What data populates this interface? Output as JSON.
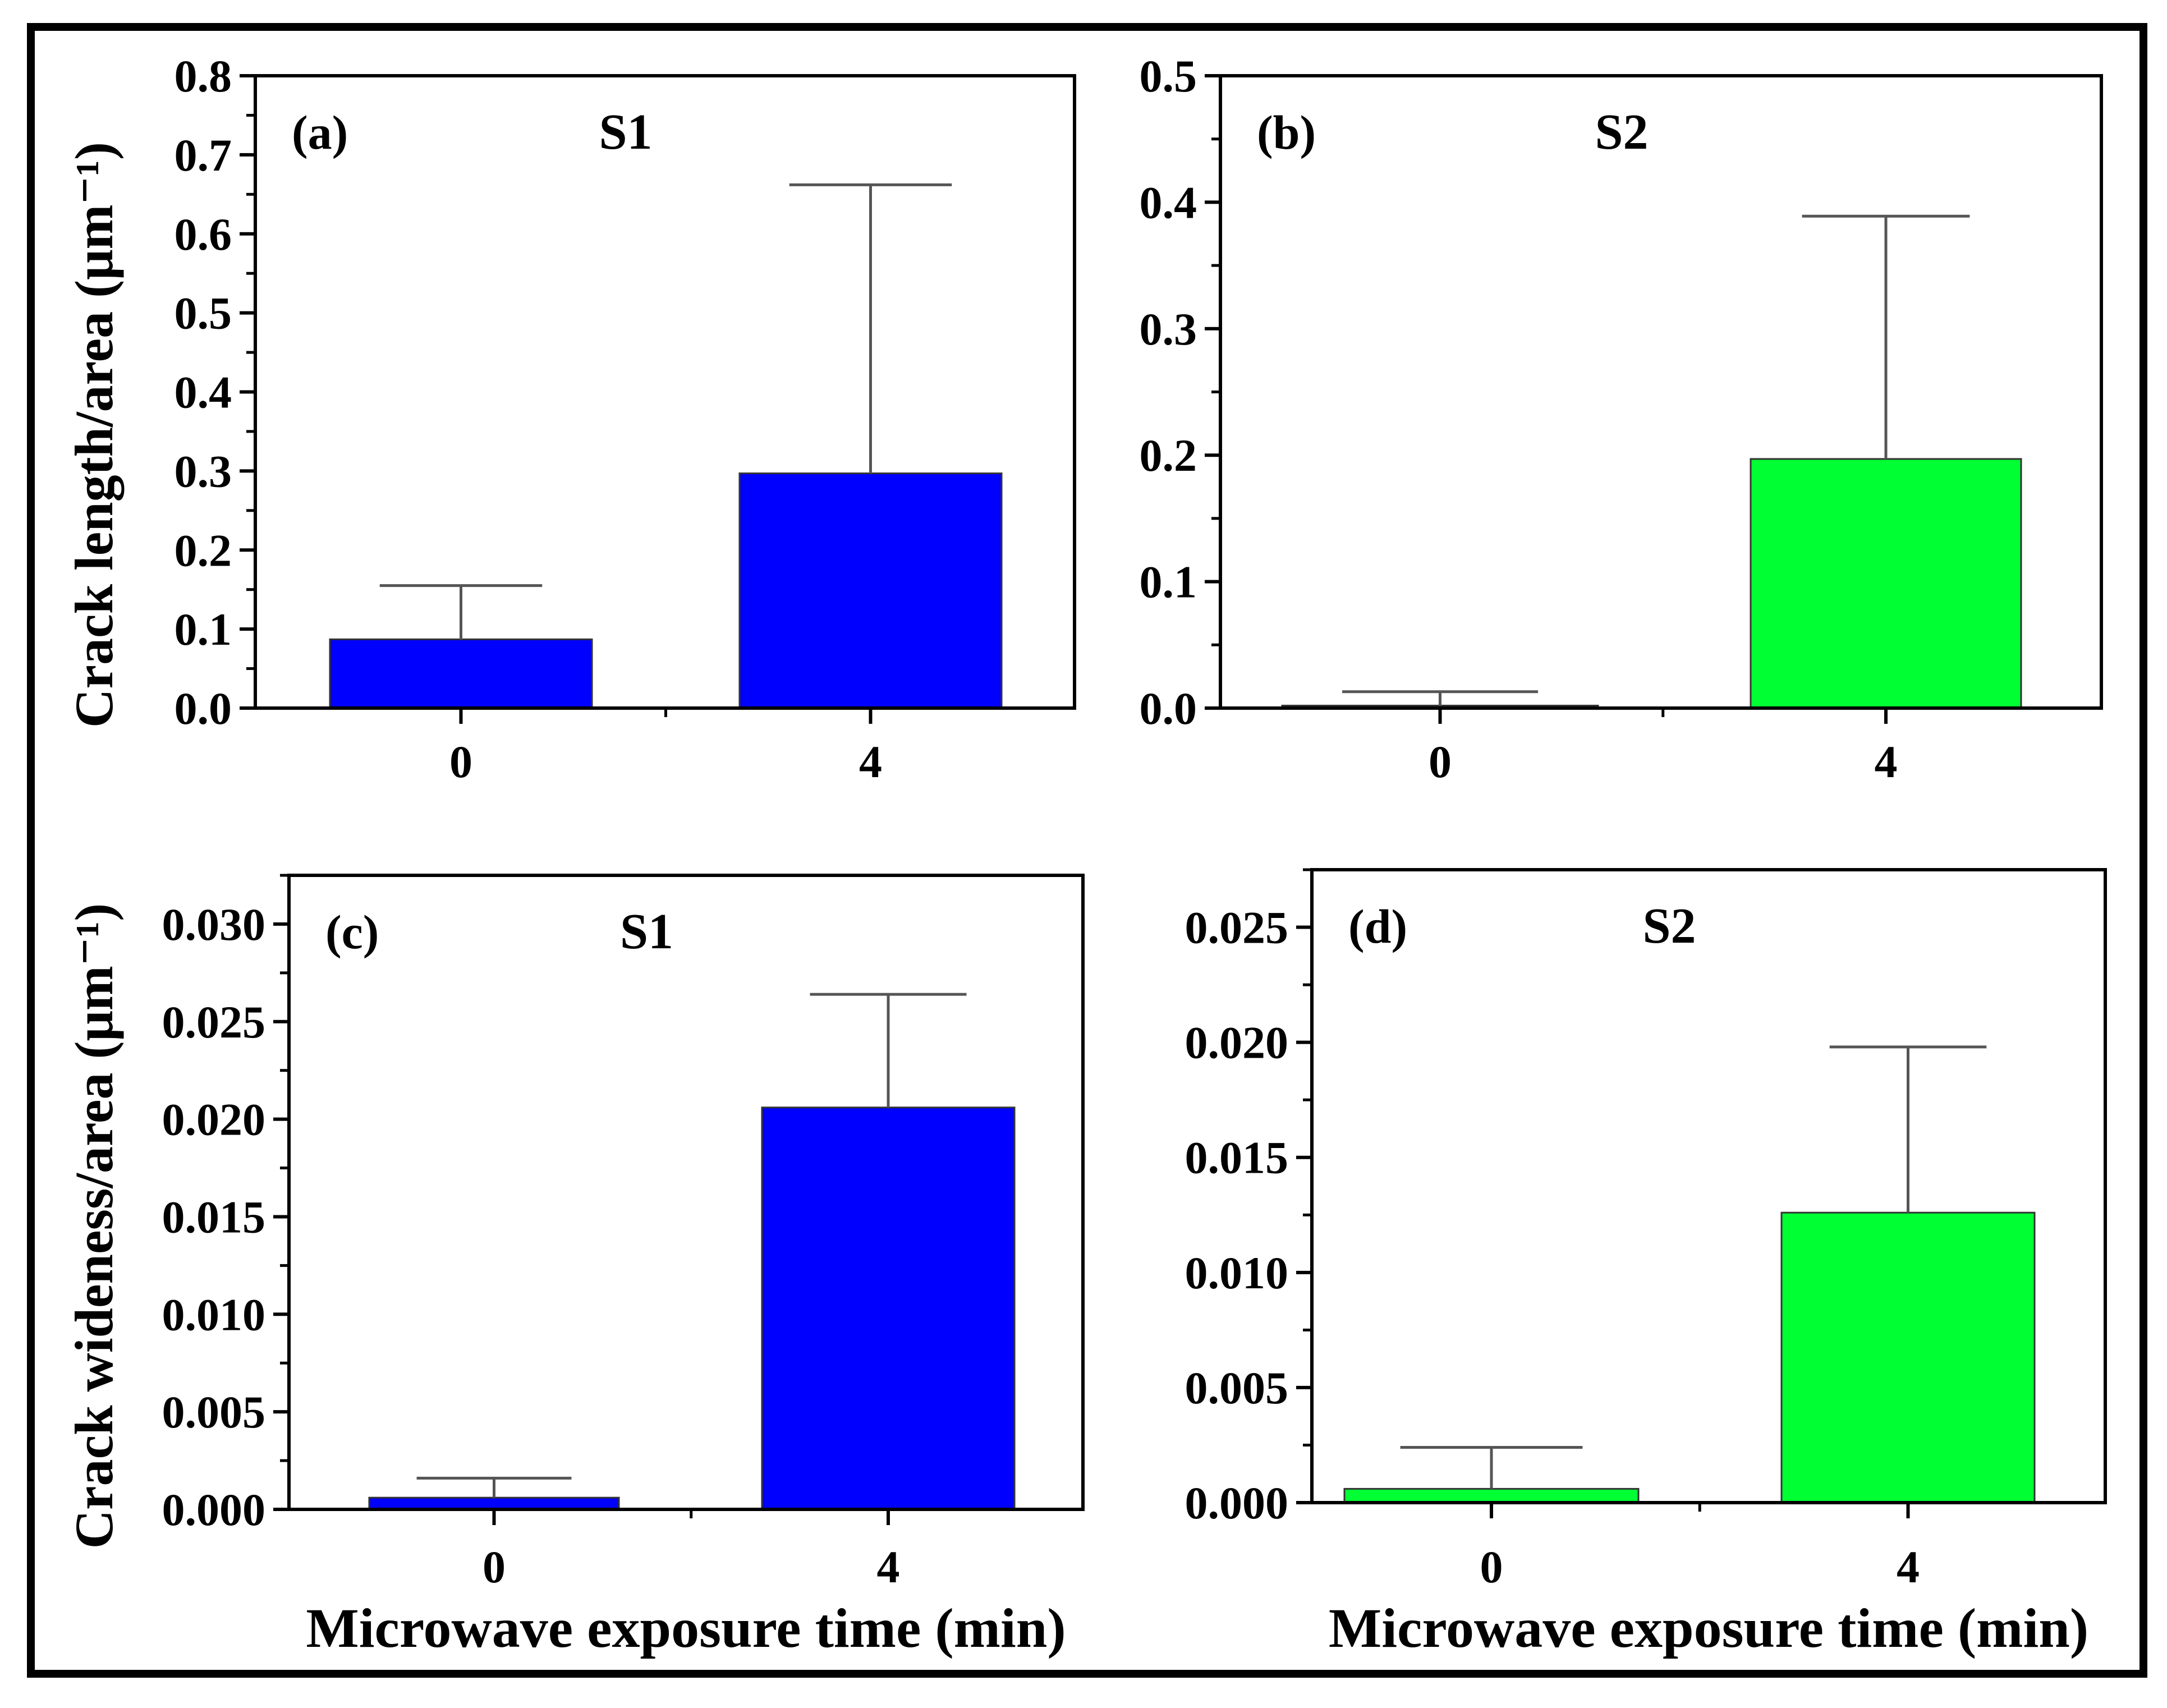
{
  "figure": {
    "ylabel_top": "Crack length/area (μm⁻¹)",
    "ylabel_bottom": "Crack wideness/area (μm⁻¹)",
    "xlabel": "Microwave exposure  time (min)",
    "colors": {
      "s1": "#0000ff",
      "s2": "#00ff33",
      "errorbar": "#555555",
      "axis": "#000000"
    }
  },
  "chart_data": [
    {
      "id": "a",
      "type": "bar",
      "panel_label": "(a)",
      "title": "S1",
      "categories": [
        "0",
        "4"
      ],
      "values": [
        0.087,
        0.297
      ],
      "errors": [
        0.068,
        0.365
      ],
      "ylim": [
        0,
        0.8
      ],
      "yticks": [
        "0.0",
        "0.1",
        "0.2",
        "0.3",
        "0.4",
        "0.5",
        "0.6",
        "0.7",
        "0.8"
      ],
      "ylabel": "Crack length/area (μm⁻¹)",
      "xlabel": "",
      "color": "#0000ff"
    },
    {
      "id": "b",
      "type": "bar",
      "panel_label": "(b)",
      "title": "S2",
      "categories": [
        "0",
        "4"
      ],
      "values": [
        0.002,
        0.197
      ],
      "errors": [
        0.011,
        0.192
      ],
      "ylim": [
        0,
        0.5
      ],
      "yticks": [
        "0.0",
        "0.1",
        "0.2",
        "0.3",
        "0.4",
        "0.5"
      ],
      "ylabel": "",
      "xlabel": "",
      "color": "#00ff33"
    },
    {
      "id": "c",
      "type": "bar",
      "panel_label": "(c)",
      "title": "S1",
      "categories": [
        "0",
        "4"
      ],
      "values": [
        0.0006,
        0.0206
      ],
      "errors": [
        0.001,
        0.0058
      ],
      "ylim": [
        0,
        0.0325
      ],
      "yticks": [
        "0.000",
        "0.005",
        "0.010",
        "0.015",
        "0.020",
        "0.025",
        "0.030"
      ],
      "ylabel": "Crack wideness/area (μm⁻¹)",
      "xlabel": "Microwave exposure  time (min)",
      "color": "#0000ff"
    },
    {
      "id": "d",
      "type": "bar",
      "panel_label": "(d)",
      "title": "S2",
      "categories": [
        "0",
        "4"
      ],
      "values": [
        0.0006,
        0.0126
      ],
      "errors": [
        0.0018,
        0.0072
      ],
      "ylim": [
        0,
        0.0275
      ],
      "yticks": [
        "0.000",
        "0.005",
        "0.010",
        "0.015",
        "0.020",
        "0.025"
      ],
      "ylabel": "",
      "xlabel": "Microwave exposure  time (min)",
      "color": "#00ff33"
    }
  ]
}
